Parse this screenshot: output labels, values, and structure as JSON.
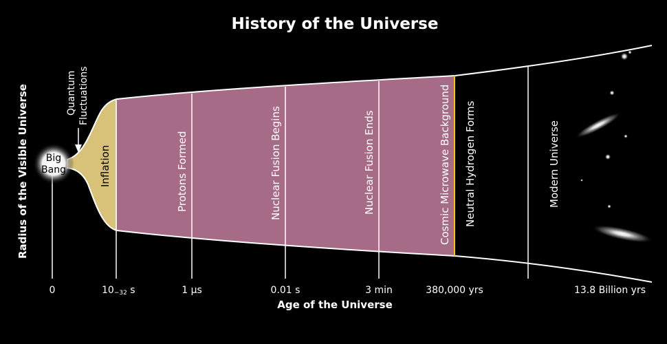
{
  "title": "History of the Universe",
  "x_axis_label": "Age of the Universe",
  "y_axis_label": "Radius of the Visible Universe",
  "big_bang_label_line1": "Big",
  "big_bang_label_line2": "Bang",
  "quantum_label_line1": "Quantum",
  "quantum_label_line2": "Fluctuations",
  "eras": {
    "inflation": "Inflation",
    "protons": "Protons Formed",
    "fusion_begins": "Nuclear Fusion Begins",
    "fusion_ends": "Nuclear Fusion Ends",
    "cmb": "Cosmic Microwave Background",
    "neutral_hydrogen": "Neutral Hydrogen Forms",
    "modern": "Modern Universe"
  },
  "ticks": {
    "t0": "0",
    "t_inflation_base": "10",
    "t_inflation_exp": "−32",
    "t_inflation_unit": " s",
    "t_us": "1 µs",
    "t_001s": "0.01 s",
    "t_3min": "3 min",
    "t_380k": "380,000 yrs",
    "t_now": "13.8 Billion yrs"
  },
  "colors": {
    "background": "#000000",
    "inflation": "#d8c27a",
    "yellow": "#f6e21a",
    "orange": "#f08a1a",
    "red": "#e3263a",
    "magenta": "#9a2a60",
    "mauve": "#a66b86",
    "line": "#ffffff"
  }
}
